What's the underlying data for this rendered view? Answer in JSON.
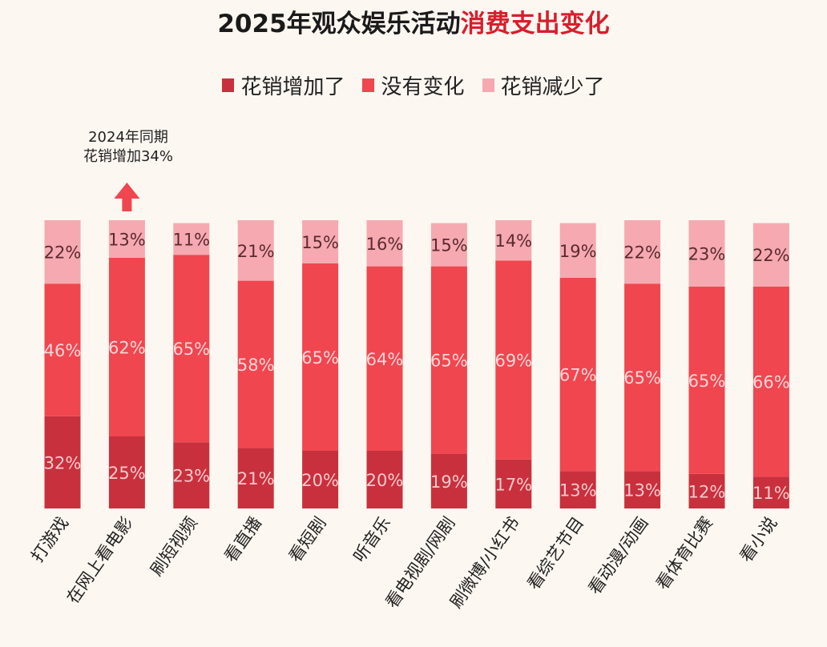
{
  "chart_data": {
    "type": "bar",
    "stacked": true,
    "title": "2025年观众娱乐活动消费支出变化",
    "title_parts": {
      "normal": "2025年观众娱乐活动",
      "highlight": "消费支出变化"
    },
    "legend_position": "top",
    "categories": [
      "打游戏",
      "在网上看电影",
      "刷短视频",
      "看直播",
      "看短剧",
      "听音乐",
      "看电视剧/网剧",
      "刷微博/小红书",
      "看综艺节目",
      "看动漫/动画",
      "看体育比赛",
      "看小说"
    ],
    "series": [
      {
        "name": "花销增加了",
        "color": "#c9303d",
        "values": [
          32,
          25,
          23,
          21,
          20,
          20,
          19,
          17,
          13,
          13,
          12,
          11
        ]
      },
      {
        "name": "没有变化",
        "color": "#f0464f",
        "values": [
          46,
          62,
          65,
          58,
          65,
          64,
          65,
          69,
          67,
          65,
          65,
          66
        ]
      },
      {
        "name": "花销减少了",
        "color": "#f6a9b1",
        "values": [
          22,
          13,
          11,
          21,
          15,
          16,
          15,
          14,
          19,
          22,
          23,
          22
        ]
      }
    ],
    "unit": "%",
    "annotation": {
      "line1": "2024年同期",
      "line2": "花销增加34%",
      "category": "在网上看电影",
      "arrow_color": "#f0464f"
    },
    "grid": false
  }
}
